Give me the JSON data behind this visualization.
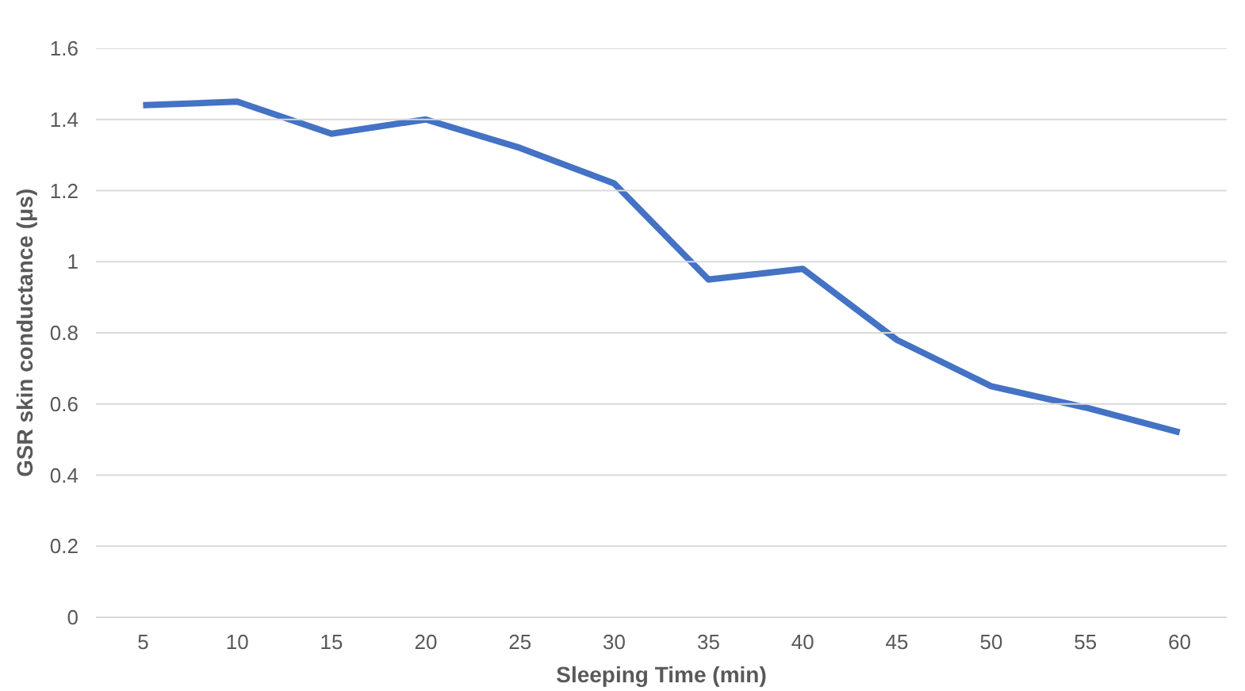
{
  "chart_data": {
    "type": "line",
    "xlabel": "Sleeping Time (min)",
    "ylabel": "GSR skin conductance (μs)",
    "categories": [
      "5",
      "10",
      "15",
      "20",
      "25",
      "30",
      "35",
      "40",
      "45",
      "50",
      "55",
      "60"
    ],
    "series": [
      {
        "color": "#4472c4",
        "values": [
          1.44,
          1.45,
          1.36,
          1.4,
          1.32,
          1.22,
          0.95,
          0.98,
          0.78,
          0.65,
          0.59,
          0.52
        ]
      }
    ],
    "ylim": [
      0,
      1.6
    ],
    "yticks": [
      0,
      0.2,
      0.4,
      0.6,
      0.8,
      1,
      1.2,
      1.4,
      1.6
    ],
    "grid": "y",
    "marker": "none",
    "line_style": "solid"
  }
}
